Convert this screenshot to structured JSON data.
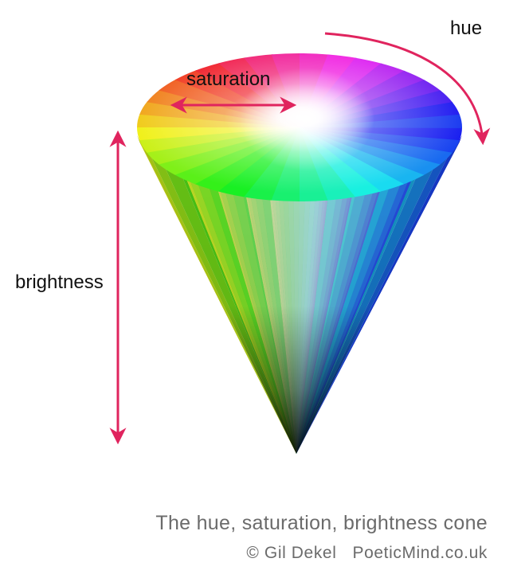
{
  "labels": {
    "hue": "hue",
    "saturation": "saturation",
    "brightness": "brightness"
  },
  "caption": {
    "title": "The hue, saturation, brightness cone",
    "copyright": "© Gil Dekel",
    "site": "PoeticMind.co.uk"
  },
  "colors": {
    "arrow": "#e0245e",
    "caption_text": "#6b6b6b",
    "label_text": "#111111",
    "background": "#ffffff"
  }
}
